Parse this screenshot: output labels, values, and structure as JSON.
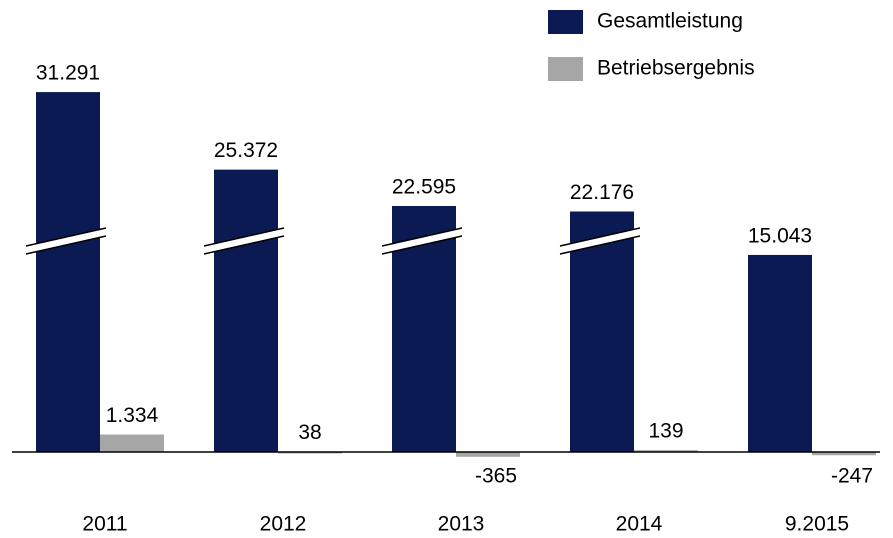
{
  "chart_data": {
    "type": "bar",
    "categories": [
      "2011",
      "2012",
      "2013",
      "2014",
      "9.2015"
    ],
    "series": [
      {
        "name": "Gesamtleistung",
        "color": "#0b1a53",
        "values": [
          31291,
          25372,
          22595,
          22176,
          15043
        ],
        "value_labels": [
          "31.291",
          "25.372",
          "22.595",
          "22.176",
          "15.043"
        ]
      },
      {
        "name": "Betriebsergebnis",
        "color": "#a6a6a6",
        "values": [
          1334,
          38,
          -365,
          139,
          -247
        ],
        "value_labels": [
          "1.334",
          "38",
          "-365",
          "139",
          "-247"
        ]
      }
    ],
    "axis_break": true,
    "legend": "top-right"
  }
}
